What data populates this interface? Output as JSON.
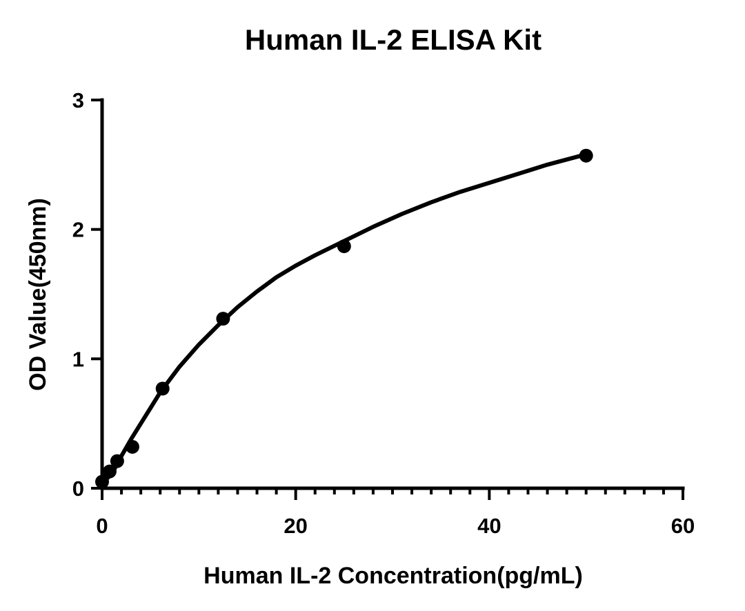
{
  "chart_data": {
    "type": "scatter",
    "title": "Human IL-2 ELISA Kit",
    "xlabel": "Human IL-2 Concentration(pg/mL)",
    "ylabel": "OD Value(450nm)",
    "xlim": [
      0,
      60
    ],
    "ylim": [
      0,
      3
    ],
    "xticks": [
      0,
      20,
      40,
      60
    ],
    "yticks": [
      0,
      1,
      2,
      3
    ],
    "x_minor_step": 2,
    "grid": false,
    "legend": "none",
    "series": [
      {
        "x": [
          0,
          0.78,
          1.56,
          3.13,
          6.25,
          12.5,
          25,
          50
        ],
        "y": [
          0.05,
          0.13,
          0.21,
          0.32,
          0.77,
          1.31,
          1.87,
          2.57
        ]
      }
    ],
    "fit_curve": {
      "x": [
        0,
        1,
        2,
        3,
        4,
        5,
        6,
        8,
        10,
        12,
        14,
        16,
        18,
        20,
        22,
        25,
        28,
        31,
        34,
        37,
        40,
        43,
        46,
        50
      ],
      "y": [
        0.04,
        0.11,
        0.25,
        0.38,
        0.5,
        0.62,
        0.74,
        0.94,
        1.11,
        1.26,
        1.4,
        1.52,
        1.63,
        1.72,
        1.8,
        1.91,
        2.02,
        2.12,
        2.21,
        2.29,
        2.36,
        2.43,
        2.5,
        2.58
      ]
    }
  }
}
